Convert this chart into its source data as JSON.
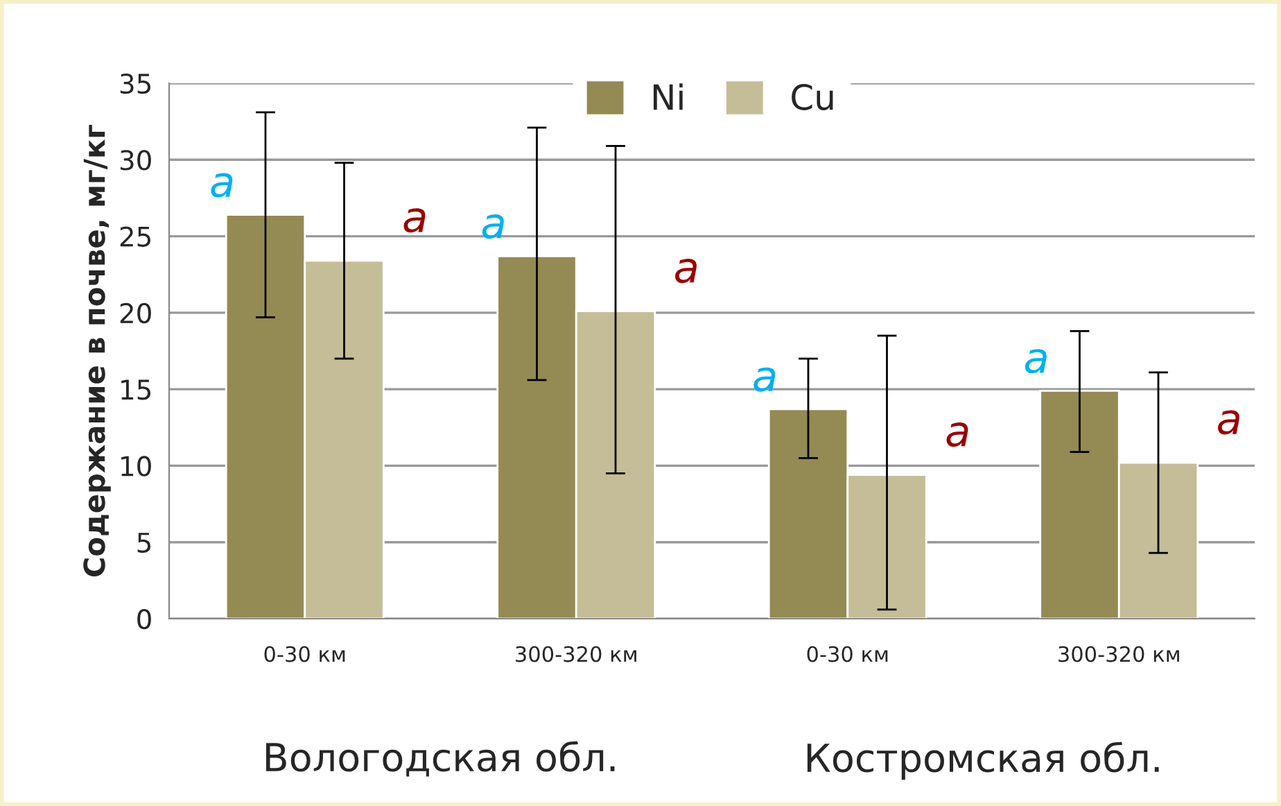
{
  "chart_data": {
    "type": "bar",
    "ylabel": "Содержание в почве, мг/кг",
    "categories": [
      "0-30 км",
      "300-320 км",
      "0-30 км",
      "300-320 км"
    ],
    "series": [
      {
        "name": "Ni",
        "color": "#948a54",
        "values": [
          26.4,
          23.7,
          13.7,
          14.9
        ],
        "errors": [
          [
            19.7,
            33.1
          ],
          [
            15.6,
            32.1
          ],
          [
            10.5,
            17.0
          ],
          [
            10.9,
            18.8
          ]
        ]
      },
      {
        "name": "Cu",
        "color": "#c4bd97",
        "values": [
          23.4,
          20.1,
          9.4,
          10.2
        ],
        "errors": [
          [
            17.0,
            29.8
          ],
          [
            9.5,
            30.9
          ],
          [
            0.6,
            18.5
          ],
          [
            4.3,
            16.1
          ]
        ]
      }
    ],
    "ylim": [
      0,
      35
    ],
    "yticks": [
      0,
      5,
      10,
      15,
      20,
      25,
      30,
      35
    ],
    "grid": "y",
    "legend": "top",
    "annotations": [
      "a",
      "a",
      "a",
      "a",
      "a",
      "a",
      "a",
      "a",
      "Вологодская обл.",
      "Костромская обл."
    ]
  }
}
